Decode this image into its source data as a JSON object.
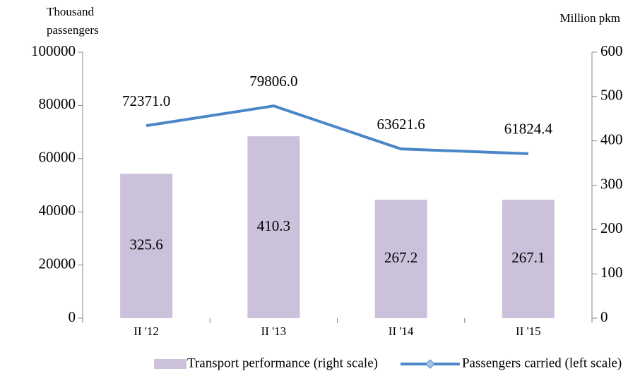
{
  "chart_data": {
    "type": "combo",
    "ylabel": [
      "Thousand",
      "passengers"
    ],
    "y2label": "Million pkm",
    "categories": [
      "II '12",
      "II '13",
      "II '14",
      "II '15"
    ],
    "series": [
      {
        "name": "Transport performance (right scale)",
        "type": "bar",
        "axis": "y2",
        "color": "#ccc1da",
        "values": [
          325.6,
          410.3,
          267.2,
          267.1
        ]
      },
      {
        "name": "Passengers carried (left scale)",
        "type": "line",
        "axis": "y",
        "color": "#4a86c8",
        "values": [
          72371,
          79806,
          63621.6,
          61824.4
        ],
        "value_labels": [
          "72371.0",
          "79806.0",
          "63621.6",
          "61824.4"
        ]
      }
    ],
    "ylim": [
      0,
      100000
    ],
    "yticks": [
      0,
      20000,
      40000,
      60000,
      80000,
      100000
    ],
    "y2lim": [
      0,
      600
    ],
    "y2ticks": [
      0,
      100,
      200,
      300,
      400,
      500,
      600
    ],
    "legend": "bottom"
  }
}
